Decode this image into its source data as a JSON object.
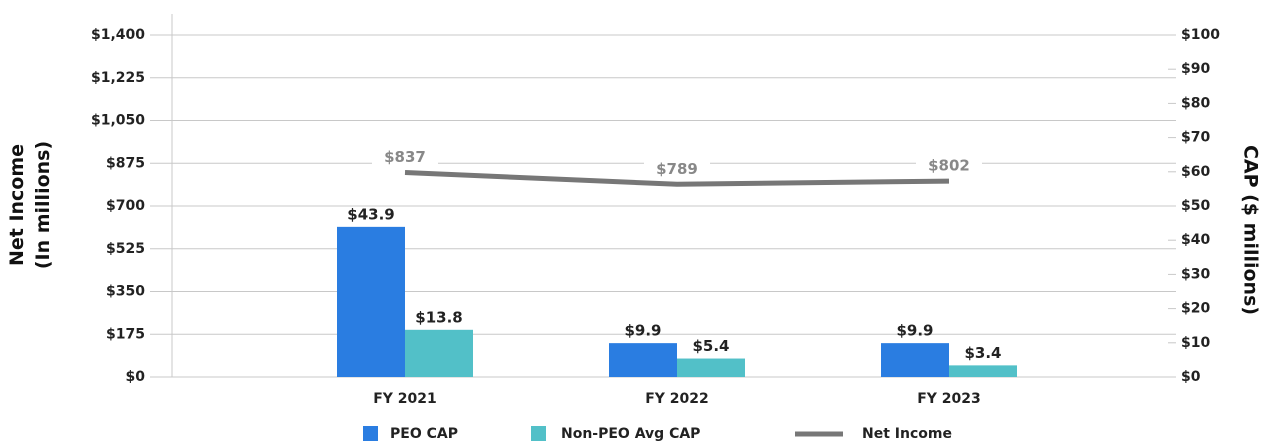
{
  "chart_data": {
    "type": "bar",
    "categories": [
      "FY 2021",
      "FY 2022",
      "FY 2023"
    ],
    "y_label": [
      "Net Income",
      "(In millions)"
    ],
    "y2_label": "CAP ($ millions)",
    "ylim": [
      0,
      1400
    ],
    "yticks": [
      {
        "value": 0,
        "label": "$0"
      },
      {
        "value": 175,
        "label": "$175"
      },
      {
        "value": 350,
        "label": "$350"
      },
      {
        "value": 525,
        "label": "$525"
      },
      {
        "value": 700,
        "label": "$700"
      },
      {
        "value": 875,
        "label": "$875"
      },
      {
        "value": 1050,
        "label": "$1,050"
      },
      {
        "value": 1225,
        "label": "$1,225"
      },
      {
        "value": 1400,
        "label": "$1,400"
      }
    ],
    "y2lim": [
      0,
      100
    ],
    "y2ticks": [
      {
        "value": 0,
        "label": "$0"
      },
      {
        "value": 10,
        "label": "$10"
      },
      {
        "value": 20,
        "label": "$20"
      },
      {
        "value": 30,
        "label": "$30"
      },
      {
        "value": 40,
        "label": "$40"
      },
      {
        "value": 50,
        "label": "$50"
      },
      {
        "value": 60,
        "label": "$60"
      },
      {
        "value": 70,
        "label": "$70"
      },
      {
        "value": 80,
        "label": "$80"
      },
      {
        "value": 90,
        "label": "$90"
      },
      {
        "value": 100,
        "label": "$100"
      }
    ],
    "grid": true,
    "series": [
      {
        "name": "PEO CAP",
        "type": "bar",
        "axis": "y2",
        "color": "#2a7de1",
        "values": [
          43.9,
          9.9,
          9.9
        ],
        "value_labels": [
          "$43.9",
          "$9.9",
          "$9.9"
        ]
      },
      {
        "name": "Non-PEO Avg CAP",
        "type": "bar",
        "axis": "y2",
        "color": "#52c0c8",
        "values": [
          13.8,
          5.4,
          3.4
        ],
        "value_labels": [
          "$13.8",
          "$5.4",
          "$3.4"
        ]
      },
      {
        "name": "Net Income",
        "type": "line",
        "color": "#777777",
        "values": [
          837,
          789,
          802
        ],
        "value_labels": [
          "$837",
          "$789",
          "$802"
        ]
      }
    ]
  }
}
